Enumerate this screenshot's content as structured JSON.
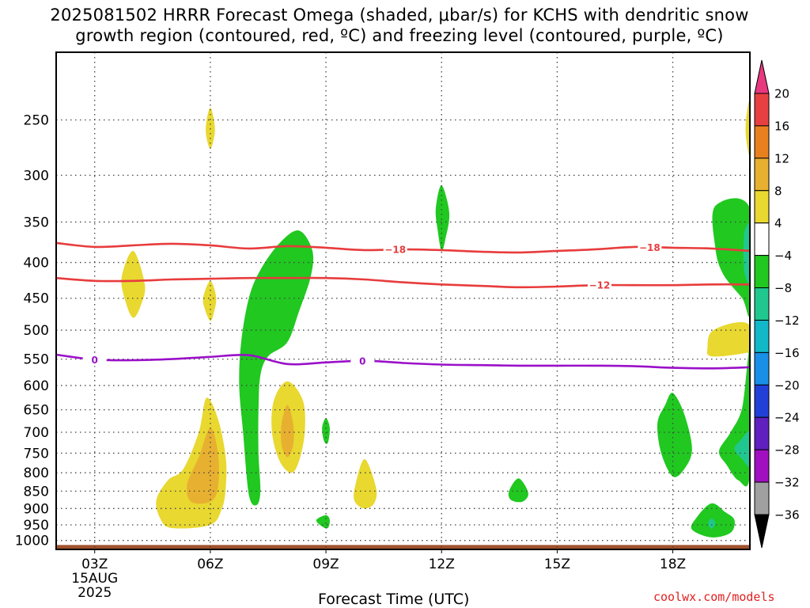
{
  "header": {
    "title_line1": "2025081502 HRRR Forecast Omega (shaded, μbar/s) for KCHS with dendritic snow",
    "title_line2": "growth region (contoured, red, ºC) and freezing level (contoured, purple, ºC)"
  },
  "credit": "coolwx.com/models",
  "chart_data": {
    "type": "heatmap",
    "title": "2025081502 HRRR Forecast Omega (shaded, μbar/s) for KCHS with dendritic snow growth region (contoured, red, ºC) and freezing level (contoured, purple, ºC)",
    "xlabel": "Forecast Time (UTC)",
    "ylabel": "",
    "x_ticks": [
      "03Z",
      "06Z",
      "09Z",
      "12Z",
      "15Z",
      "18Z"
    ],
    "x_tick_values": [
      3,
      6,
      9,
      12,
      15,
      18
    ],
    "x_date_label": [
      "15AUG",
      "2025"
    ],
    "xlim": [
      2,
      20
    ],
    "y_ticks": [
      250,
      300,
      350,
      400,
      450,
      500,
      550,
      600,
      650,
      700,
      750,
      800,
      850,
      900,
      950,
      1000
    ],
    "ylim": [
      1030,
      200
    ],
    "y_scale": "log",
    "grid": true,
    "colorbar": {
      "labels": [
        "20",
        "16",
        "12",
        "8",
        "4",
        "−4",
        "−8",
        "−12",
        "−16",
        "−20",
        "−24",
        "−28",
        "−32",
        "−36"
      ],
      "colors": [
        "#e8387e",
        "#e84040",
        "#e88020",
        "#e8b030",
        "#e8d830",
        "#ffffff",
        "#20c820",
        "#20c890",
        "#10b8c8",
        "#1890e8",
        "#2040d8",
        "#6020c0",
        "#a010c0",
        "#a0a0a0",
        "#000000"
      ]
    },
    "omega_regions": [
      {
        "value": 4,
        "color": "#e8d830",
        "points": [
          [
            6.0,
            240
          ],
          [
            6.12,
            258
          ],
          [
            6.0,
            275
          ],
          [
            5.88,
            258
          ]
        ]
      },
      {
        "value": 4,
        "color": "#e8d830",
        "points": [
          [
            4.0,
            385
          ],
          [
            4.3,
            430
          ],
          [
            4.2,
            460
          ],
          [
            4.0,
            480
          ],
          [
            3.8,
            455
          ],
          [
            3.7,
            420
          ]
        ]
      },
      {
        "value": 4,
        "color": "#e8d830",
        "points": [
          [
            6.0,
            425
          ],
          [
            6.15,
            448
          ],
          [
            6.1,
            470
          ],
          [
            6.0,
            485
          ],
          [
            5.85,
            465
          ],
          [
            5.82,
            448
          ]
        ]
      },
      {
        "value": 4,
        "color": "#e8d830",
        "points": [
          [
            5.9,
            625
          ],
          [
            6.2,
            670
          ],
          [
            6.4,
            760
          ],
          [
            6.4,
            840
          ],
          [
            6.3,
            900
          ],
          [
            6.0,
            950
          ],
          [
            5.0,
            960
          ],
          [
            4.7,
            930
          ],
          [
            4.6,
            875
          ],
          [
            4.9,
            820
          ],
          [
            5.3,
            790
          ],
          [
            5.7,
            700
          ]
        ]
      },
      {
        "value": 8,
        "color": "#e8b030",
        "points": [
          [
            6.0,
            690
          ],
          [
            6.2,
            750
          ],
          [
            6.2,
            840
          ],
          [
            6.0,
            880
          ],
          [
            5.5,
            880
          ],
          [
            5.4,
            830
          ],
          [
            5.7,
            760
          ]
        ]
      },
      {
        "value": 4,
        "color": "#e8d830",
        "points": [
          [
            8.0,
            592
          ],
          [
            8.4,
            630
          ],
          [
            8.45,
            700
          ],
          [
            8.3,
            770
          ],
          [
            8.1,
            800
          ],
          [
            7.8,
            770
          ],
          [
            7.6,
            700
          ],
          [
            7.65,
            630
          ]
        ]
      },
      {
        "value": 8,
        "color": "#e8b030",
        "points": [
          [
            8.0,
            640
          ],
          [
            8.15,
            680
          ],
          [
            8.15,
            730
          ],
          [
            8.0,
            760
          ],
          [
            7.85,
            730
          ],
          [
            7.85,
            680
          ]
        ]
      },
      {
        "value": 4,
        "color": "#e8d830",
        "points": [
          [
            10.0,
            765
          ],
          [
            10.3,
            840
          ],
          [
            10.25,
            885
          ],
          [
            10.0,
            900
          ],
          [
            9.75,
            880
          ],
          [
            9.75,
            840
          ]
        ]
      },
      {
        "value": 4,
        "color": "#e8d830",
        "points": [
          [
            19.9,
            488
          ],
          [
            20.2,
            530
          ],
          [
            19.8,
            540
          ],
          [
            19.0,
            545
          ],
          [
            18.9,
            530
          ],
          [
            19.05,
            500
          ]
        ]
      },
      {
        "value": 4,
        "color": "#e8d830",
        "points": [
          [
            19.9,
            250
          ],
          [
            20,
            235
          ],
          [
            20,
            280
          ],
          [
            19.9,
            265
          ]
        ]
      },
      {
        "value": -4,
        "color": "#20c820",
        "points": [
          [
            12.0,
            310
          ],
          [
            12.2,
            340
          ],
          [
            12.1,
            370
          ],
          [
            12.0,
            385
          ],
          [
            11.9,
            360
          ],
          [
            11.85,
            335
          ]
        ]
      },
      {
        "value": -4,
        "color": "#20c820",
        "points": [
          [
            8.3,
            360
          ],
          [
            8.65,
            385
          ],
          [
            8.6,
            420
          ],
          [
            8.3,
            470
          ],
          [
            8.0,
            520
          ],
          [
            7.5,
            545
          ],
          [
            7.3,
            580
          ],
          [
            7.25,
            650
          ],
          [
            7.25,
            750
          ],
          [
            7.3,
            850
          ],
          [
            7.2,
            890
          ],
          [
            7.0,
            860
          ],
          [
            6.85,
            700
          ],
          [
            6.75,
            600
          ],
          [
            6.8,
            520
          ],
          [
            7.0,
            450
          ],
          [
            7.3,
            410
          ],
          [
            7.8,
            375
          ]
        ]
      },
      {
        "value": -4,
        "color": "#20c820",
        "points": [
          [
            9.0,
            668
          ],
          [
            9.1,
            690
          ],
          [
            9.05,
            725
          ],
          [
            8.95,
            720
          ],
          [
            8.9,
            690
          ]
        ]
      },
      {
        "value": -4,
        "color": "#20c820",
        "points": [
          [
            9.0,
            920
          ],
          [
            9.1,
            935
          ],
          [
            9.05,
            960
          ],
          [
            8.9,
            955
          ],
          [
            8.75,
            935
          ]
        ]
      },
      {
        "value": -4,
        "color": "#20c820",
        "points": [
          [
            14.0,
            815
          ],
          [
            14.25,
            855
          ],
          [
            14.1,
            880
          ],
          [
            13.8,
            875
          ],
          [
            13.75,
            850
          ]
        ]
      },
      {
        "value": -4,
        "color": "#20c820",
        "points": [
          [
            18.0,
            615
          ],
          [
            18.3,
            660
          ],
          [
            18.5,
            740
          ],
          [
            18.3,
            790
          ],
          [
            18.0,
            810
          ],
          [
            17.7,
            750
          ],
          [
            17.6,
            680
          ],
          [
            17.8,
            640
          ]
        ]
      },
      {
        "value": -4,
        "color": "#20c820",
        "points": [
          [
            20,
            535
          ],
          [
            20,
            805
          ],
          [
            19.7,
            820
          ],
          [
            19.4,
            780
          ],
          [
            19.2,
            745
          ],
          [
            19.5,
            700
          ],
          [
            19.8,
            645
          ]
        ]
      },
      {
        "value": -8,
        "color": "#20c890",
        "points": [
          [
            19.75,
            720
          ],
          [
            20,
            700
          ],
          [
            20,
            780
          ],
          [
            19.8,
            765
          ],
          [
            19.6,
            740
          ]
        ]
      },
      {
        "value": -4,
        "color": "#20c820",
        "points": [
          [
            19.0,
            885
          ],
          [
            19.35,
            910
          ],
          [
            19.6,
            935
          ],
          [
            19.5,
            975
          ],
          [
            19.0,
            990
          ],
          [
            18.5,
            965
          ],
          [
            18.6,
            930
          ]
        ]
      },
      {
        "value": -8,
        "color": "#20c890",
        "points": [
          [
            19.0,
            930
          ],
          [
            19.1,
            945
          ],
          [
            19.0,
            962
          ],
          [
            18.92,
            945
          ]
        ]
      },
      {
        "value": -4,
        "color": "#20c820",
        "points": [
          [
            19.1,
            332
          ],
          [
            20,
            335
          ],
          [
            20,
            470
          ],
          [
            19.8,
            450
          ],
          [
            19.3,
            415
          ],
          [
            19.1,
            380
          ]
        ]
      },
      {
        "value": -8,
        "color": "#20c890",
        "points": [
          [
            19.85,
            365
          ],
          [
            20,
            355
          ],
          [
            20,
            425
          ],
          [
            19.85,
            410
          ]
        ]
      }
    ],
    "contours": [
      {
        "name": "-18",
        "level": -18,
        "color": "#e83c3c",
        "labels_at": [
          10.8,
          17.4
        ],
        "points": [
          [
            2,
            375
          ],
          [
            3,
            380
          ],
          [
            4,
            378
          ],
          [
            5,
            376
          ],
          [
            6,
            378
          ],
          [
            7,
            382
          ],
          [
            8,
            379
          ],
          [
            9,
            381
          ],
          [
            10,
            384
          ],
          [
            11,
            383
          ],
          [
            12,
            384
          ],
          [
            13,
            386
          ],
          [
            14,
            387
          ],
          [
            15,
            385
          ],
          [
            16,
            383
          ],
          [
            17,
            380
          ],
          [
            18,
            381
          ],
          [
            19,
            382
          ],
          [
            20,
            385
          ]
        ]
      },
      {
        "name": "-12",
        "level": -12,
        "color": "#e83c3c",
        "labels_at": [
          16.1
        ],
        "points": [
          [
            2,
            421
          ],
          [
            3,
            425
          ],
          [
            4,
            425
          ],
          [
            5,
            423
          ],
          [
            6,
            422
          ],
          [
            7,
            421
          ],
          [
            8,
            421
          ],
          [
            9,
            421
          ],
          [
            10,
            423
          ],
          [
            11,
            427
          ],
          [
            12,
            430
          ],
          [
            13,
            432
          ],
          [
            14,
            434
          ],
          [
            15,
            433
          ],
          [
            16,
            431
          ],
          [
            17,
            431
          ],
          [
            18,
            431
          ],
          [
            19,
            430
          ],
          [
            20,
            430
          ]
        ]
      },
      {
        "name": "0",
        "level": 0,
        "color": "#9a10c8",
        "labels_at": [
          3.0,
          9.95
        ],
        "points": [
          [
            2,
            542
          ],
          [
            3,
            551
          ],
          [
            4,
            552
          ],
          [
            5,
            550
          ],
          [
            6,
            546
          ],
          [
            7,
            543
          ],
          [
            8,
            559
          ],
          [
            9,
            556
          ],
          [
            10,
            553
          ],
          [
            11,
            557
          ],
          [
            12,
            560
          ],
          [
            13,
            561
          ],
          [
            14,
            562
          ],
          [
            15,
            562
          ],
          [
            16,
            562
          ],
          [
            17,
            563
          ],
          [
            18,
            566
          ],
          [
            19,
            567
          ],
          [
            20,
            565
          ]
        ]
      }
    ],
    "terrain_pressure": 1015
  }
}
